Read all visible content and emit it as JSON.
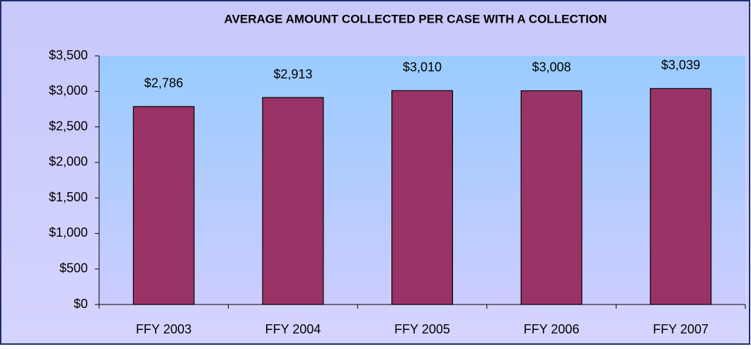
{
  "chart_data": {
    "type": "bar",
    "title": "AVERAGE AMOUNT COLLECTED PER CASE WITH A COLLECTION",
    "categories": [
      "FFY 2003",
      "FFY 2004",
      "FFY 2005",
      "FFY 2006",
      "FFY 2007"
    ],
    "values": [
      2786,
      2913,
      3010,
      3008,
      3039
    ],
    "value_labels": [
      "$2,786",
      "$2,913",
      "$3,010",
      "$3,008",
      "$3,039"
    ],
    "color": "#993366",
    "ylim": [
      0,
      3500
    ],
    "yticks": [
      {
        "value": 0,
        "label": "$0"
      },
      {
        "value": 500,
        "label": "$500"
      },
      {
        "value": 1000,
        "label": "$1,000"
      },
      {
        "value": 1500,
        "label": "$1,500"
      },
      {
        "value": 2000,
        "label": "$2,000"
      },
      {
        "value": 2500,
        "label": "$2,500"
      },
      {
        "value": 3000,
        "label": "$3,000"
      },
      {
        "value": 3500,
        "label": "$3,500"
      }
    ],
    "grid": false
  }
}
